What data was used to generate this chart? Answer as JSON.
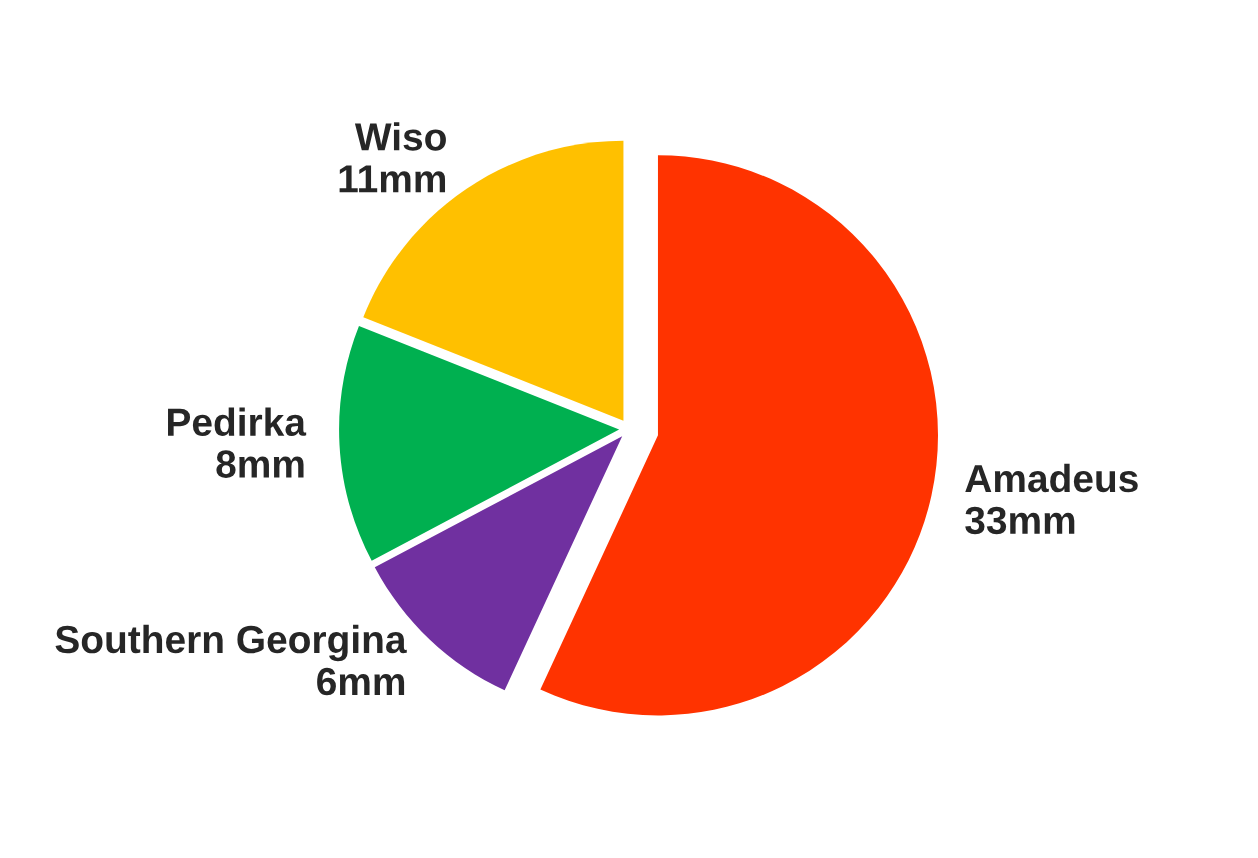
{
  "chart_data": {
    "type": "pie",
    "categories": [
      "Amadeus",
      "Southern Georgina",
      "Pedirka",
      "Wiso"
    ],
    "values": [
      33,
      6,
      8,
      11
    ],
    "value_labels": [
      "33mm",
      "6mm",
      "8mm",
      "11mm"
    ],
    "colors": [
      "#ff3300",
      "#7030a0",
      "#00b050",
      "#ffc000"
    ],
    "legend": false
  }
}
